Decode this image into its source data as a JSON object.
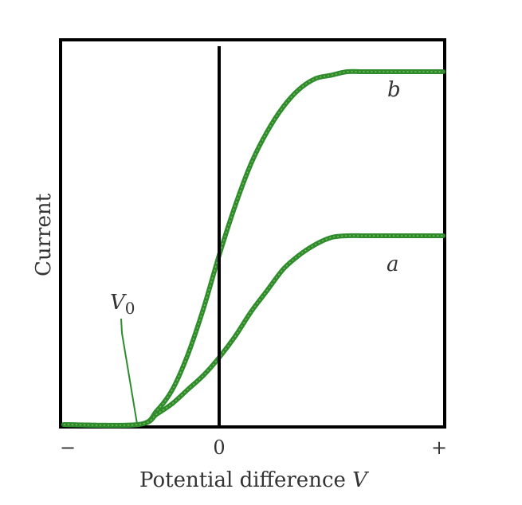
{
  "chart_data": {
    "type": "line",
    "title": "",
    "xlabel_text": "Potential difference ",
    "xlabel_var": "V",
    "ylabel": "Current",
    "x_ticks": [
      "−",
      "0",
      "+"
    ],
    "xlim": [
      -1,
      1.4
    ],
    "ylim": [
      0,
      1
    ],
    "grid": false,
    "annotation": {
      "text": "V",
      "subscript": "0",
      "x": -0.52,
      "y": 0
    },
    "series": [
      {
        "name": "b",
        "x": [
          -1.0,
          -0.52,
          -0.4,
          -0.3,
          -0.2,
          -0.1,
          0.0,
          0.1,
          0.2,
          0.3,
          0.4,
          0.5,
          0.6,
          0.7,
          0.8,
          0.9,
          1.0,
          1.2,
          1.4
        ],
        "y": [
          0.0,
          0.0,
          0.04,
          0.1,
          0.2,
          0.33,
          0.48,
          0.62,
          0.74,
          0.83,
          0.9,
          0.95,
          0.98,
          0.99,
          1.0,
          1.0,
          1.0,
          1.0,
          1.0
        ]
      },
      {
        "name": "a",
        "x": [
          -1.0,
          -0.52,
          -0.4,
          -0.3,
          -0.2,
          -0.1,
          0.0,
          0.1,
          0.2,
          0.3,
          0.4,
          0.5,
          0.6,
          0.7,
          0.8,
          0.9,
          1.0,
          1.2,
          1.4
        ],
        "y": [
          0.0,
          0.0,
          0.03,
          0.06,
          0.1,
          0.14,
          0.19,
          0.25,
          0.32,
          0.38,
          0.44,
          0.48,
          0.51,
          0.53,
          0.535,
          0.535,
          0.535,
          0.535,
          0.535
        ]
      }
    ],
    "colors": {
      "curve": "#2e8b2e",
      "curve_highlight": "#7fc04a",
      "axis": "#000000",
      "text": "#333333"
    }
  }
}
